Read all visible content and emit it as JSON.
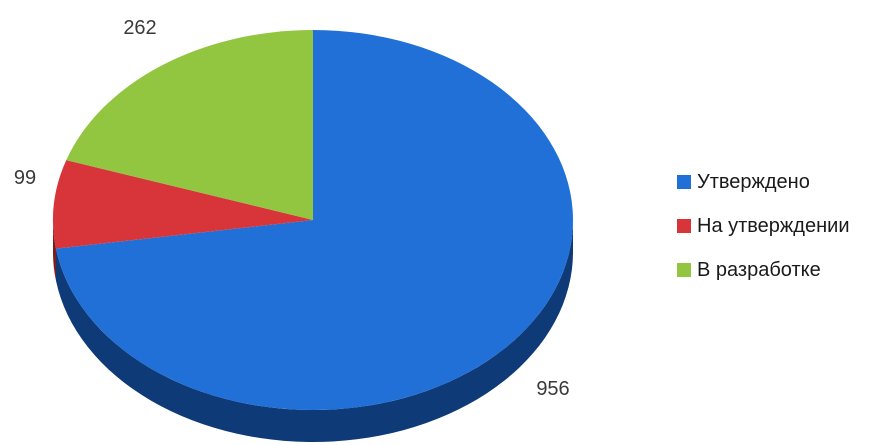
{
  "chart_data": {
    "type": "pie",
    "style": "3d",
    "categories": [
      "Утверждено",
      "На утверждении",
      "В разработке"
    ],
    "values": [
      956,
      99,
      262
    ],
    "data_labels": [
      "956",
      "99",
      "262"
    ],
    "colors": {
      "Утверждено": "#2070d8",
      "На утверждении": "#d8353a",
      "В разработке": "#92c640"
    },
    "side_colors": {
      "Утверждено": "#0f3a78",
      "На утверждении": "#7d1a1d",
      "В разработке": "#4f7220"
    },
    "start_direction": "12 o'clock",
    "direction": "clockwise",
    "legend_position": "right"
  }
}
